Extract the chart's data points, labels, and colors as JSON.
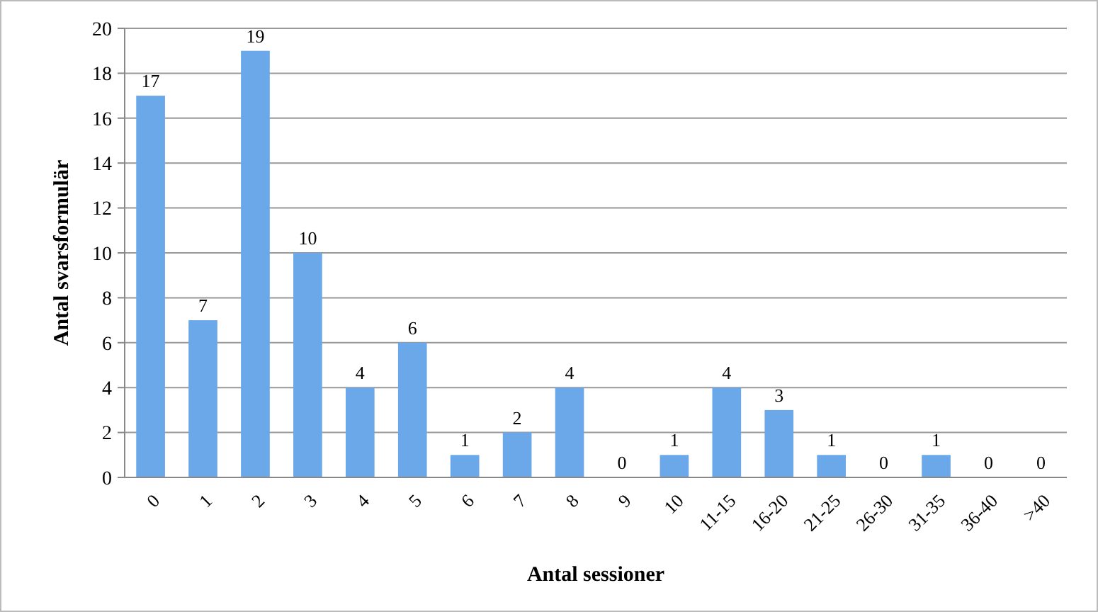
{
  "chart_data": {
    "type": "bar",
    "xlabel": "Antal sessioner",
    "ylabel": "Antal svarsformulär",
    "categories": [
      "0",
      "1",
      "2",
      "3",
      "4",
      "5",
      "6",
      "7",
      "8",
      "9",
      "10",
      "11-15",
      "16-20",
      "21-25",
      "26-30",
      "31-35",
      "36-40",
      ">40"
    ],
    "values": [
      17,
      7,
      19,
      10,
      4,
      6,
      1,
      2,
      4,
      0,
      1,
      4,
      3,
      1,
      0,
      1,
      0,
      0
    ],
    "color": "#6aa8ea",
    "ylim": [
      0,
      20
    ],
    "yticks": [
      0,
      2,
      4,
      6,
      8,
      10,
      12,
      14,
      16,
      18,
      20
    ],
    "grid": "y",
    "data_labels": true
  }
}
